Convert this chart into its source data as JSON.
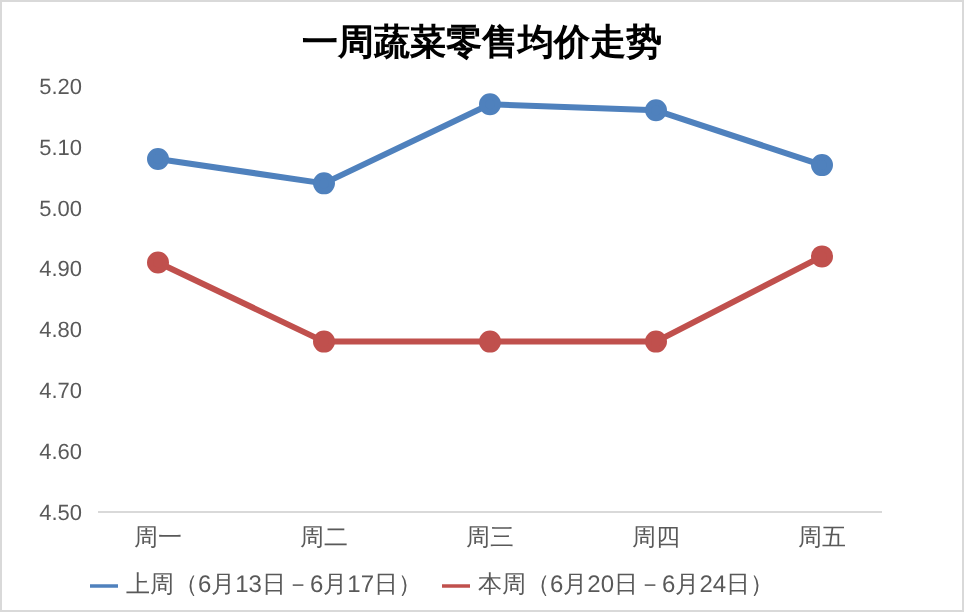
{
  "chart_data": {
    "type": "line",
    "title": "一周蔬菜零售均价走势",
    "categories": [
      "周一",
      "周二",
      "周三",
      "周四",
      "周五"
    ],
    "series": [
      {
        "name": "上周（6月13日－6月17日）",
        "color": "#4f81bd",
        "values": [
          5.08,
          5.04,
          5.17,
          5.16,
          5.07
        ]
      },
      {
        "name": "本周（6月20日－6月24日）",
        "color": "#c0504d",
        "values": [
          4.91,
          4.78,
          4.78,
          4.78,
          4.92
        ]
      }
    ],
    "ylim": [
      4.5,
      5.2
    ],
    "yticks": [
      {
        "value": 4.5,
        "label": "4.50"
      },
      {
        "value": 4.6,
        "label": "4.60"
      },
      {
        "value": 4.7,
        "label": "4.70"
      },
      {
        "value": 4.8,
        "label": "4.80"
      },
      {
        "value": 4.9,
        "label": "4.90"
      },
      {
        "value": 5.0,
        "label": "5.00"
      },
      {
        "value": 5.1,
        "label": "5.10"
      },
      {
        "value": 5.2,
        "label": "5.20"
      }
    ],
    "grid": false,
    "legend": "bottom",
    "marker": "circle",
    "line_style": "solid"
  }
}
